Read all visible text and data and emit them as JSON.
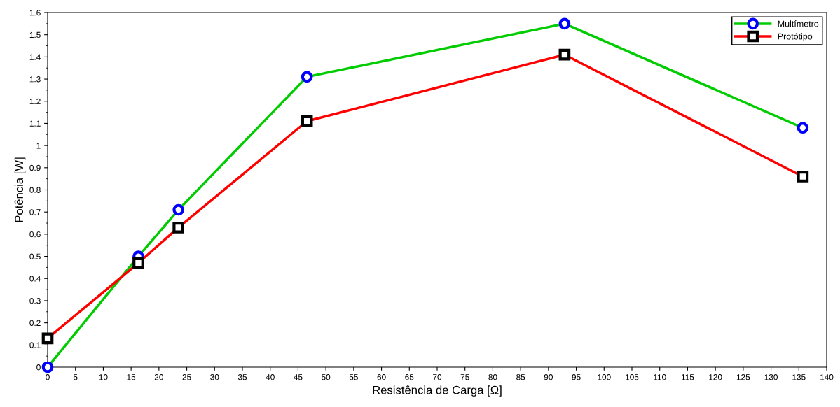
{
  "chart_data": {
    "type": "line",
    "xlabel": "Resistência de Carga [Ω]",
    "ylabel": "Potência [W]",
    "xlim": [
      0,
      140
    ],
    "xticks": [
      0,
      5,
      10,
      15,
      20,
      25,
      30,
      35,
      40,
      45,
      50,
      55,
      60,
      65,
      70,
      75,
      80,
      85,
      90,
      95,
      100,
      105,
      110,
      115,
      120,
      125,
      130,
      135,
      140
    ],
    "ylim": [
      0,
      1.6
    ],
    "yticks": [
      0,
      0.1,
      0.2,
      0.3,
      0.4,
      0.5,
      0.6,
      0.7,
      0.8,
      0.9,
      1,
      1.1,
      1.2,
      1.3,
      1.4,
      1.5,
      1.6
    ],
    "grid": false,
    "legend": "top right",
    "x": [
      0,
      16.3,
      23.5,
      46.6,
      92.9,
      135.7
    ],
    "series": [
      {
        "name": "Multímetro",
        "color": "#00cc00",
        "marker": "circle",
        "values": [
          0,
          0.5,
          0.71,
          1.31,
          1.55,
          1.08
        ]
      },
      {
        "name": "Protótipo",
        "color": "#ff0000",
        "marker": "square",
        "values": [
          0.13,
          0.47,
          0.63,
          1.11,
          1.41,
          0.86
        ]
      }
    ]
  }
}
